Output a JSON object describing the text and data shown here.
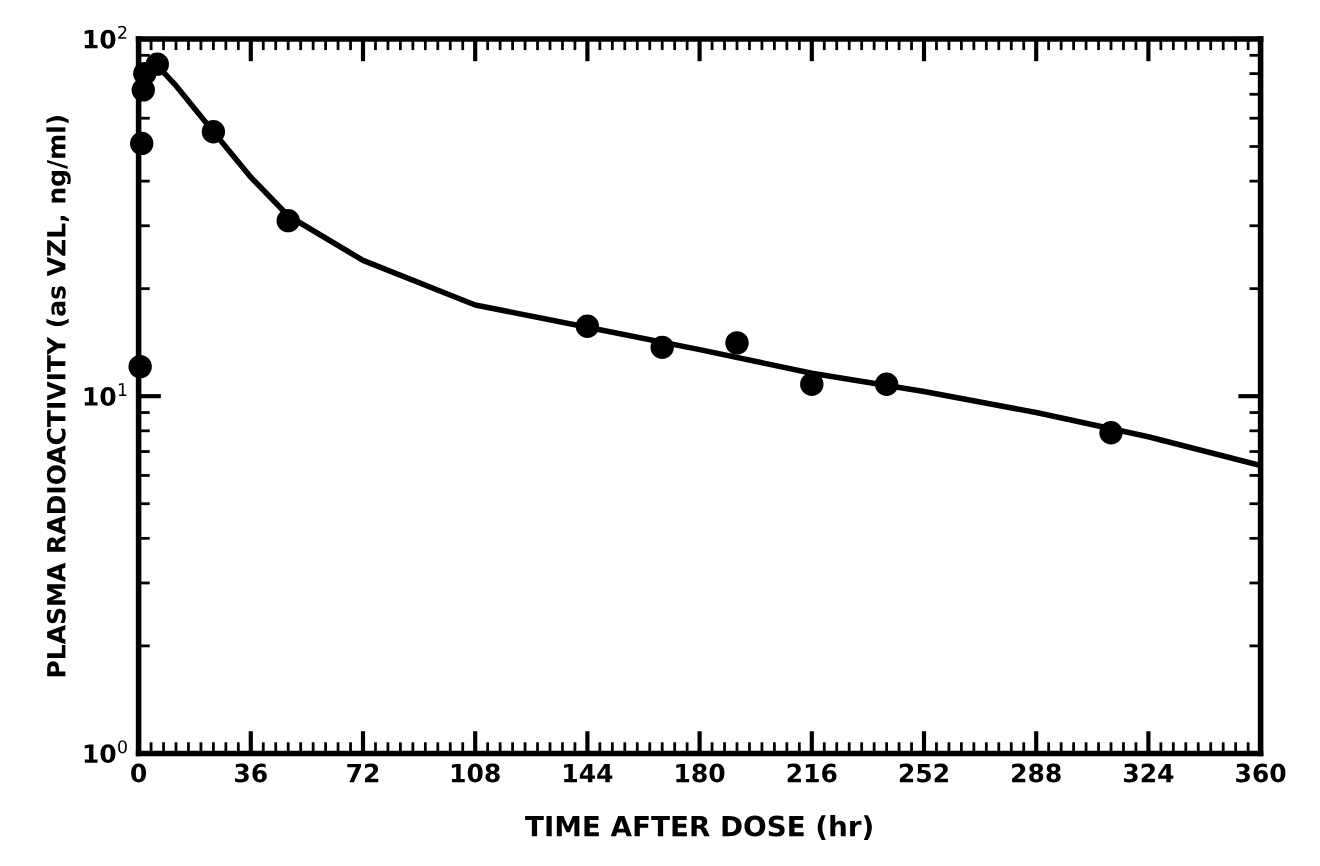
{
  "chart_data": {
    "type": "scatter",
    "xlabel": "TIME AFTER DOSE (hr)",
    "ylabel": "PLASMA RADIOACTIVITY (as VZL, ng/ml)",
    "log": "y",
    "grid": false,
    "legend": false,
    "xlim": [
      0,
      360
    ],
    "xticks": [
      0,
      36,
      72,
      108,
      144,
      180,
      216,
      252,
      288,
      324,
      360
    ],
    "ylim": [
      1,
      100
    ],
    "yticks": [
      {
        "value": 1,
        "label": "10$^{0}$"
      },
      {
        "value": 10,
        "label": "10$^{1}$"
      },
      {
        "value": 100,
        "label": "10$^{2}$"
      }
    ],
    "series": [
      {
        "color": "#000000",
        "marker": "circle",
        "x": [
          0.5,
          1,
          1.5,
          2,
          4,
          6,
          24,
          48,
          144,
          168,
          192,
          216,
          240,
          312
        ],
        "values": [
          12.1,
          51,
          72,
          80,
          null,
          85,
          55,
          31,
          15.7,
          13.7,
          14.1,
          10.8,
          10.8,
          7.9
        ]
      },
      {
        "type": "line",
        "color": "#000000",
        "line_style": "solid",
        "x": [
          5,
          12,
          24,
          36,
          48,
          72,
          108,
          144,
          180,
          216,
          252,
          288,
          324,
          360
        ],
        "values": [
          86,
          74,
          55,
          41,
          32,
          24,
          18,
          15.6,
          13.5,
          11.6,
          10.3,
          9,
          7.7,
          6.4
        ]
      }
    ]
  }
}
